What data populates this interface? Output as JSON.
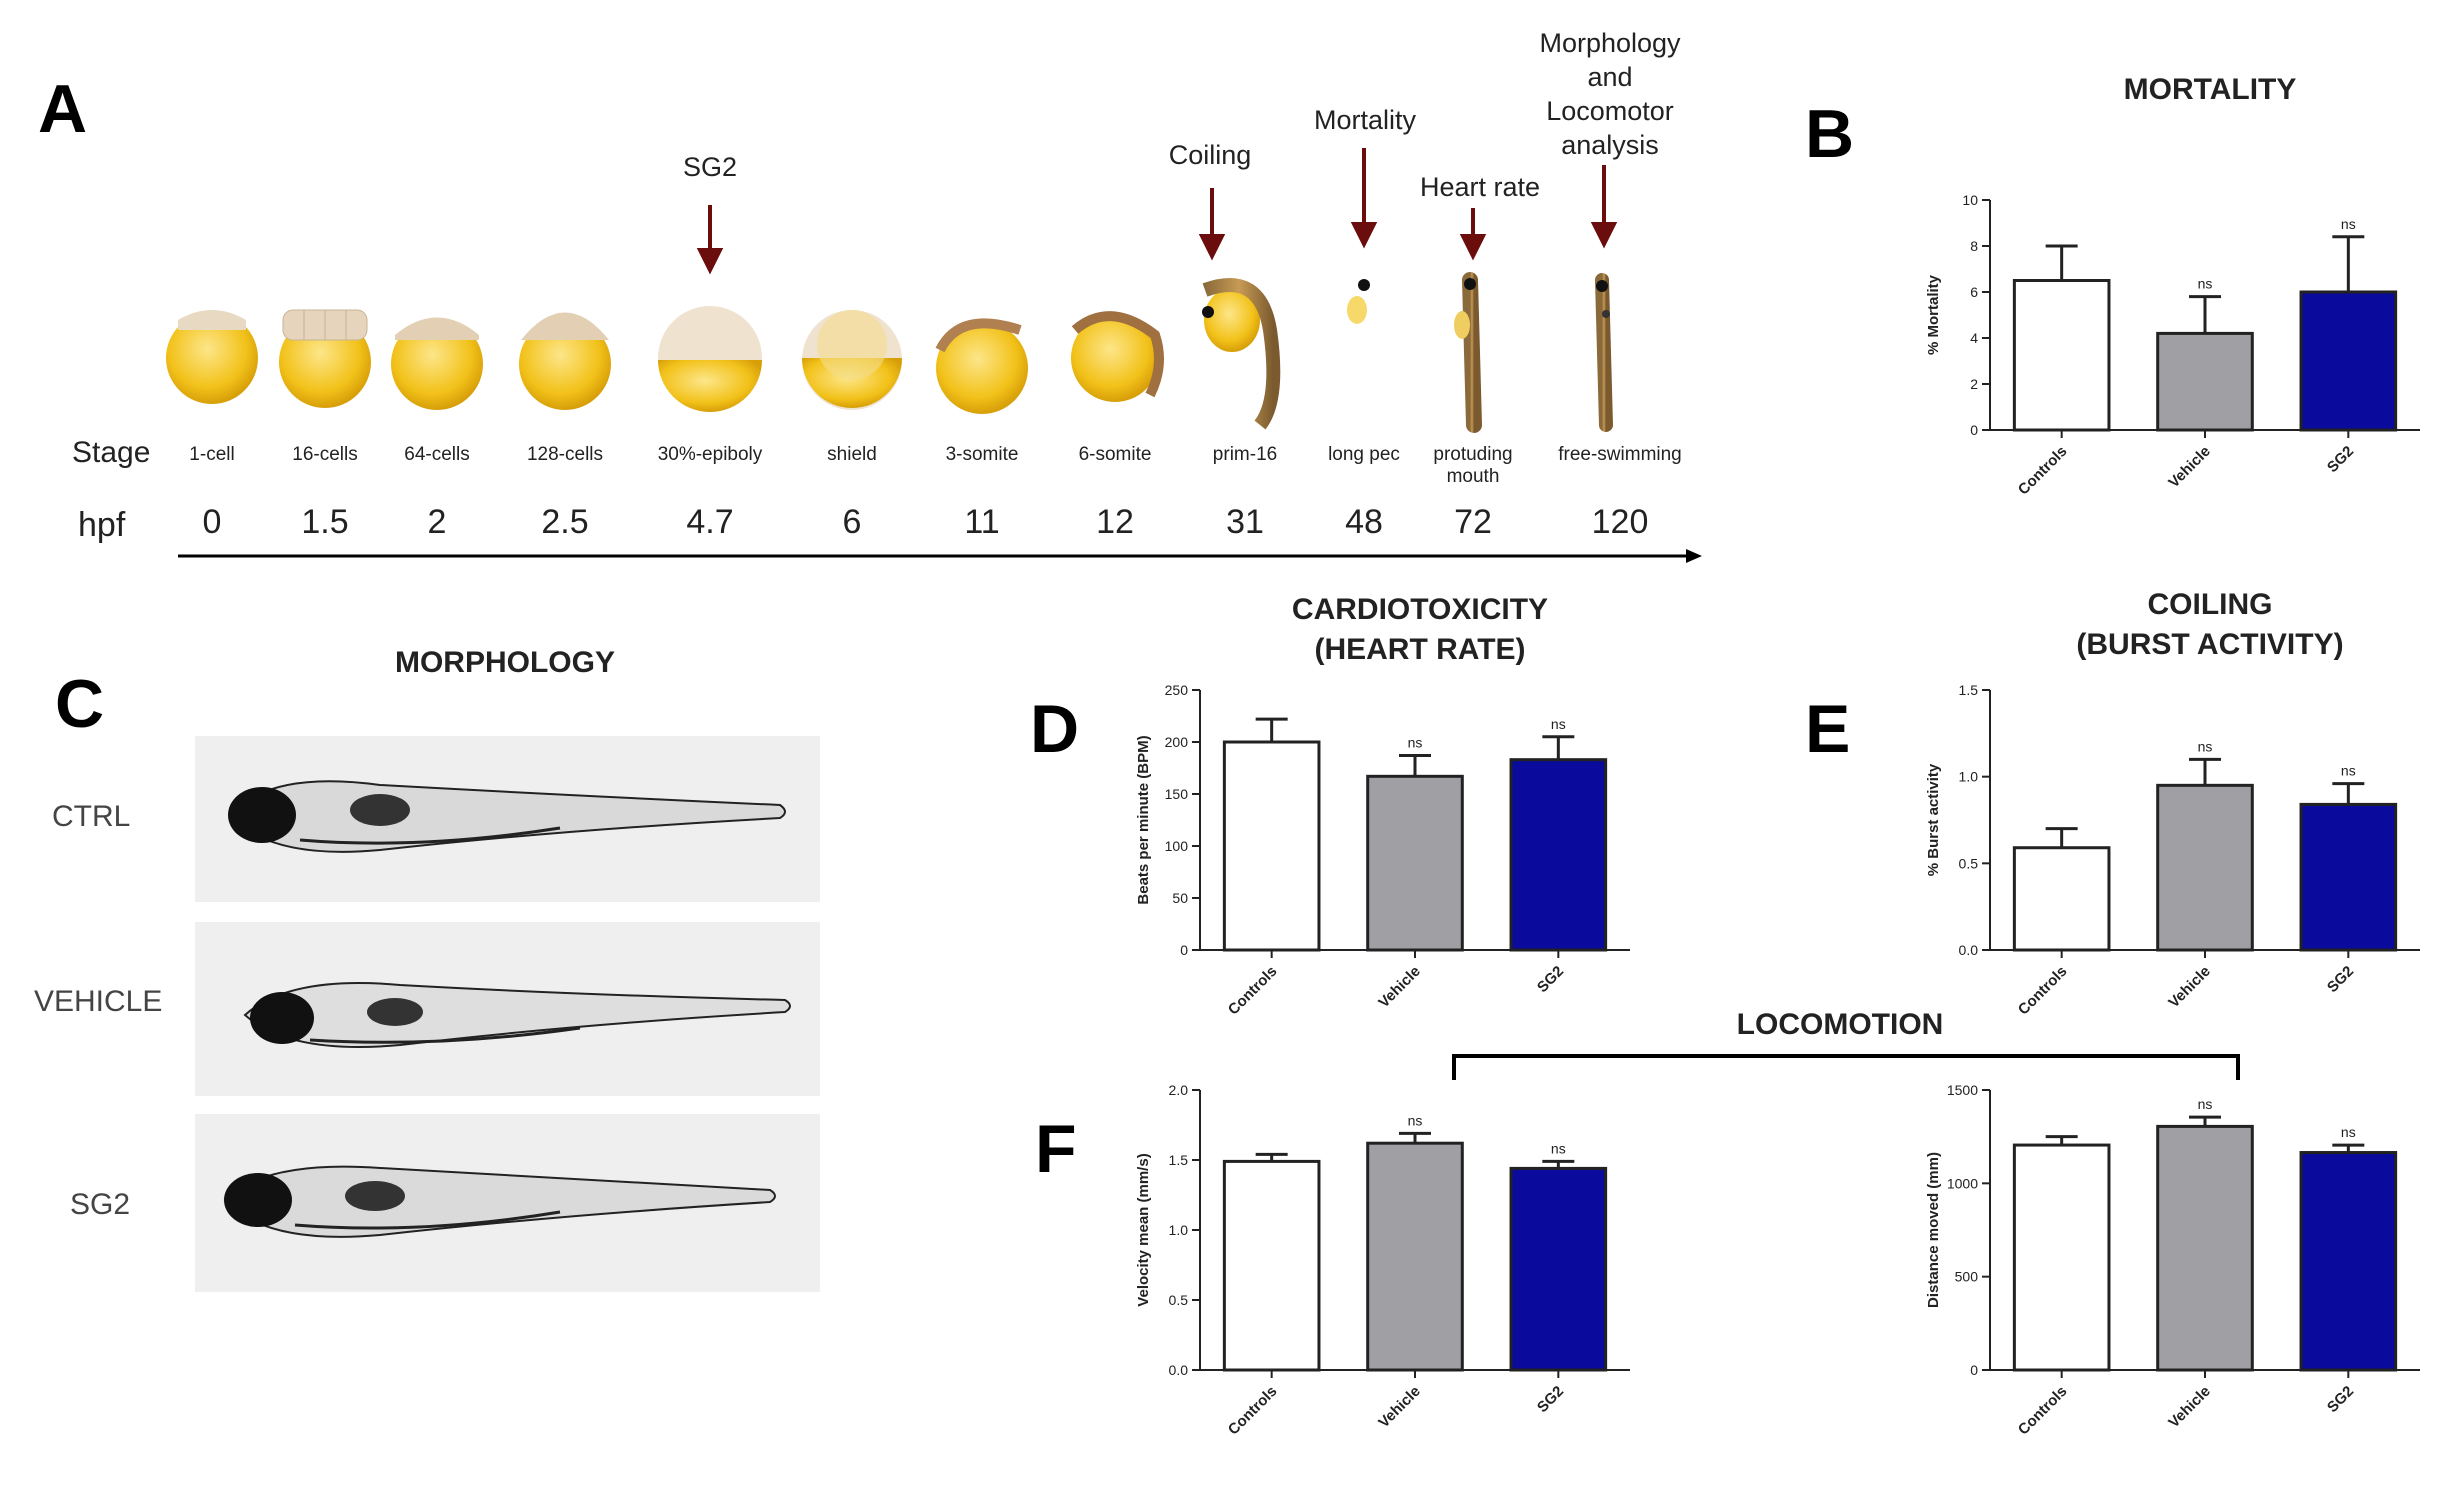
{
  "panels": {
    "A": "A",
    "B": "B",
    "C": "C",
    "D": "D",
    "E": "E",
    "F": "F"
  },
  "timeline": {
    "row_stage": "Stage",
    "row_hpf": "hpf",
    "annotations": {
      "sg2": "SG2",
      "coiling": "Coiling",
      "mortality": "Mortality",
      "heart_rate": "Heart rate",
      "morph_line1": "Morphology",
      "morph_line2": "and",
      "morph_line3": "Locomotor",
      "morph_line4": "analysis"
    },
    "stages": [
      {
        "name": "1-cell",
        "hpf": "0"
      },
      {
        "name": "16-cells",
        "hpf": "1.5"
      },
      {
        "name": "64-cells",
        "hpf": "2"
      },
      {
        "name": "128-cells",
        "hpf": "2.5"
      },
      {
        "name": "30%-epiboly",
        "hpf": "4.7"
      },
      {
        "name": "shield",
        "hpf": "6"
      },
      {
        "name": "3-somite",
        "hpf": "11"
      },
      {
        "name": "6-somite",
        "hpf": "12"
      },
      {
        "name": "prim-16",
        "hpf": "31"
      },
      {
        "name": "long pec",
        "hpf": "48"
      },
      {
        "name": "protuding",
        "name2": "mouth",
        "hpf": "72"
      },
      {
        "name": "free-swimming",
        "hpf": "120"
      }
    ]
  },
  "morphology": {
    "title": "MORPHOLOGY",
    "rows": [
      "CTRL",
      "VEHICLE",
      "SG2"
    ]
  },
  "titles": {
    "mortality": "MORTALITY",
    "cardio_1": "CARDIOTOXICITY",
    "cardio_2": "(HEART RATE)",
    "coiling_1": "COILING",
    "coiling_2": "(BURST ACTIVITY)",
    "locomotion": "LOCOMOTION"
  },
  "colors": {
    "controls": "#ffffff",
    "vehicle": "#a0a0a4",
    "sg2": "#0a0a9c",
    "axis": "#222222"
  },
  "chart_data": [
    {
      "id": "B",
      "type": "bar",
      "title": "MORTALITY",
      "ylabel": "% Mortality",
      "categories": [
        "Controls",
        "Vehicle",
        "SG2"
      ],
      "values": [
        6.5,
        4.2,
        6.0
      ],
      "errors": [
        1.5,
        1.6,
        2.4
      ],
      "sig": [
        "",
        "ns",
        "ns"
      ],
      "ylim": [
        0,
        10
      ],
      "yticks": [
        "0",
        "2",
        "4",
        "6",
        "8",
        "10"
      ],
      "ytick_values": [
        0,
        2,
        4,
        6,
        8,
        10
      ]
    },
    {
      "id": "D",
      "type": "bar",
      "title": "CARDIOTOXICITY (HEART RATE)",
      "ylabel": "Beats per minute (BPM)",
      "categories": [
        "Controls",
        "Vehicle",
        "SG2"
      ],
      "values": [
        200,
        167,
        183
      ],
      "errors": [
        22,
        20,
        22
      ],
      "sig": [
        "",
        "ns",
        "ns"
      ],
      "ylim": [
        0,
        250
      ],
      "yticks": [
        "0",
        "50",
        "100",
        "150",
        "200",
        "250"
      ],
      "ytick_values": [
        0,
        50,
        100,
        150,
        200,
        250
      ]
    },
    {
      "id": "E",
      "type": "bar",
      "title": "COILING (BURST ACTIVITY)",
      "ylabel": "% Burst activity",
      "categories": [
        "Controls",
        "Vehicle",
        "SG2"
      ],
      "values": [
        0.59,
        0.95,
        0.84
      ],
      "errors": [
        0.11,
        0.15,
        0.12
      ],
      "sig": [
        "",
        "ns",
        "ns"
      ],
      "ylim": [
        0,
        1.5
      ],
      "yticks": [
        "0.0",
        "0.5",
        "1.0",
        "1.5"
      ],
      "ytick_values": [
        0,
        0.5,
        1.0,
        1.5
      ]
    },
    {
      "id": "F1",
      "type": "bar",
      "title": "LOCOMOTION",
      "ylabel": "Velocity mean (mm/s)",
      "categories": [
        "Controls",
        "Vehicle",
        "SG2"
      ],
      "values": [
        1.49,
        1.62,
        1.44
      ],
      "errors": [
        0.05,
        0.07,
        0.05
      ],
      "sig": [
        "",
        "ns",
        "ns"
      ],
      "ylim": [
        0,
        2.0
      ],
      "yticks": [
        "0.0",
        "0.5",
        "1.0",
        "1.5",
        "2.0"
      ],
      "ytick_values": [
        0,
        0.5,
        1.0,
        1.5,
        2.0
      ]
    },
    {
      "id": "F2",
      "type": "bar",
      "title": "LOCOMOTION",
      "ylabel": "Distance moved (mm)",
      "categories": [
        "Controls",
        "Vehicle",
        "SG2"
      ],
      "values": [
        1205,
        1305,
        1165
      ],
      "errors": [
        45,
        50,
        40
      ],
      "sig": [
        "",
        "ns",
        "ns"
      ],
      "ylim": [
        0,
        1500
      ],
      "yticks": [
        "0",
        "500",
        "1000",
        "1500"
      ],
      "ytick_values": [
        0,
        500,
        1000,
        1500
      ]
    }
  ]
}
